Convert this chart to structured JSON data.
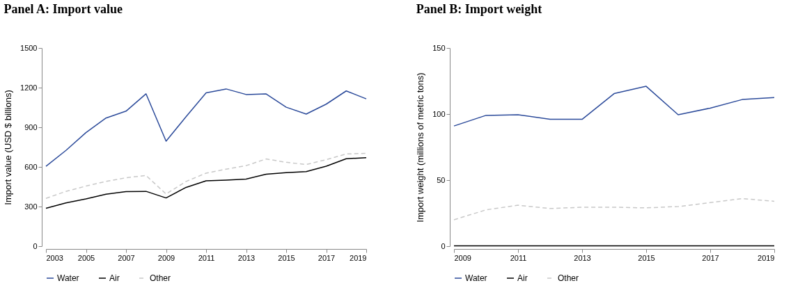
{
  "chart_data": [
    {
      "type": "line",
      "title": "Panel A: Import value",
      "ylabel": "Import value (USD $ billions)",
      "x": [
        2003,
        2004,
        2005,
        2006,
        2007,
        2008,
        2009,
        2010,
        2011,
        2012,
        2013,
        2014,
        2015,
        2016,
        2017,
        2018,
        2019
      ],
      "series": [
        {
          "name": "Water",
          "color": "#2b4a9a",
          "line_style": "solid",
          "values": [
            605,
            725,
            860,
            970,
            1022,
            1153,
            795,
            980,
            1160,
            1190,
            1148,
            1152,
            1052,
            1000,
            1075,
            1175,
            1115
          ]
        },
        {
          "name": "Air",
          "color": "#000000",
          "line_style": "solid",
          "values": [
            287,
            328,
            358,
            393,
            413,
            415,
            365,
            445,
            495,
            500,
            508,
            545,
            557,
            565,
            605,
            662,
            670
          ]
        },
        {
          "name": "Other",
          "color": "#c8c8c8",
          "line_style": "dashed",
          "values": [
            362,
            415,
            455,
            490,
            518,
            535,
            395,
            490,
            553,
            583,
            610,
            660,
            635,
            618,
            655,
            698,
            703
          ]
        }
      ],
      "xlim": [
        2003,
        2019
      ],
      "xticks": [
        2003,
        2005,
        2007,
        2009,
        2011,
        2013,
        2015,
        2017,
        2019
      ],
      "ylim": [
        0,
        1500
      ],
      "yticks": [
        0,
        300,
        600,
        900,
        1200,
        1500
      ],
      "grid": false,
      "legend": "bottom",
      "marker": "none"
    },
    {
      "type": "line",
      "title": "Panel B: Import weight",
      "ylabel": "Import weight (millions of metric tons)",
      "x": [
        2009,
        2010,
        2011,
        2012,
        2013,
        2014,
        2015,
        2016,
        2017,
        2018,
        2019
      ],
      "series": [
        {
          "name": "Water",
          "color": "#2b4a9a",
          "line_style": "solid",
          "values": [
            91,
            99,
            99.5,
            96,
            96,
            115.5,
            121,
            99.5,
            104.5,
            111,
            112.5
          ]
        },
        {
          "name": "Air",
          "color": "#000000",
          "line_style": "solid",
          "values": [
            0.2,
            0.2,
            0.2,
            0.2,
            0.2,
            0.2,
            0.2,
            0.2,
            0.2,
            0.2,
            0.2
          ]
        },
        {
          "name": "Other",
          "color": "#c8c8c8",
          "line_style": "dashed",
          "values": [
            20,
            27.5,
            31,
            28.5,
            29.5,
            29.5,
            29,
            30,
            33,
            36,
            34
          ]
        }
      ],
      "xlim": [
        2009,
        2019
      ],
      "xticks": [
        2009,
        2011,
        2013,
        2015,
        2017,
        2019
      ],
      "ylim": [
        0,
        150
      ],
      "yticks": [
        0,
        50,
        100,
        150
      ],
      "grid": false,
      "legend": "bottom",
      "marker": "none"
    }
  ]
}
